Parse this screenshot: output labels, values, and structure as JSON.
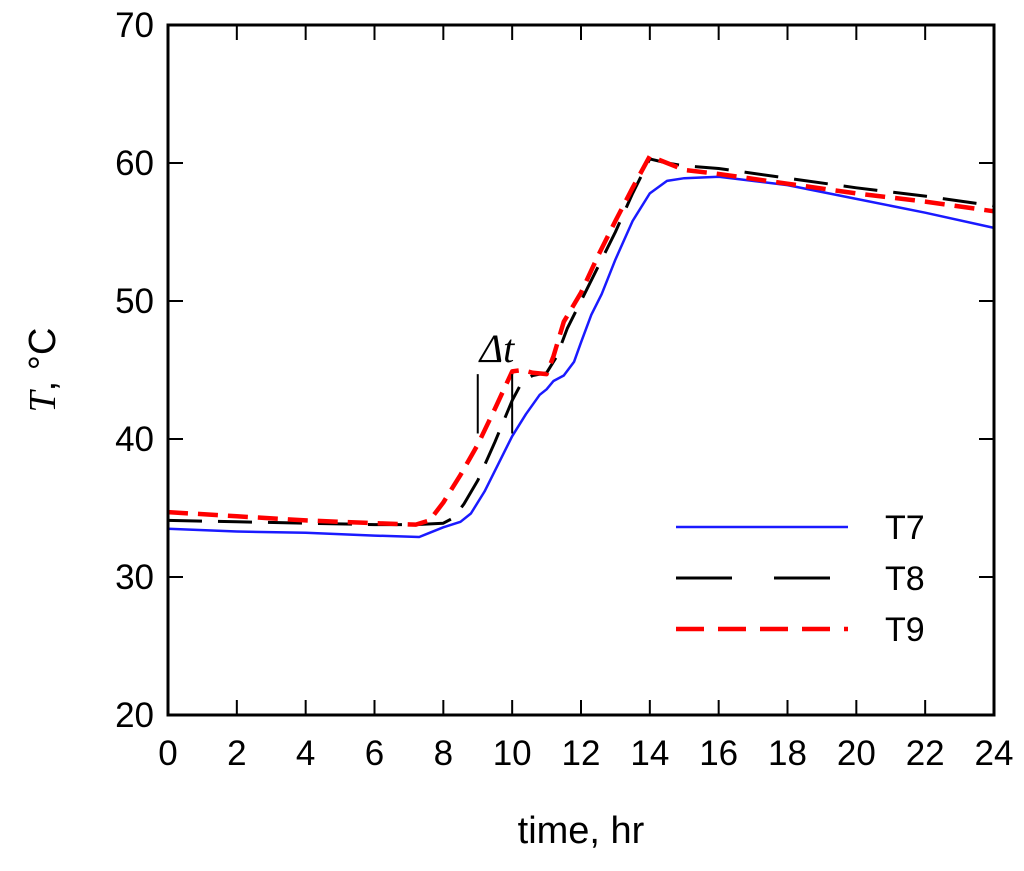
{
  "chart_data": {
    "type": "line",
    "title": "",
    "xlabel": "time, hr",
    "ylabel": {
      "symbol": "T",
      "unit": ", °C"
    },
    "xlim": [
      0,
      24
    ],
    "ylim": [
      20,
      70
    ],
    "xticks": [
      0,
      2,
      4,
      6,
      8,
      10,
      12,
      14,
      16,
      18,
      20,
      22,
      24
    ],
    "yticks": [
      20,
      30,
      40,
      50,
      60,
      70
    ],
    "grid": false,
    "legend_position": "bottom-right",
    "annotation": {
      "text": "Δt",
      "x_start": 9.0,
      "x_end": 10.0
    },
    "series": [
      {
        "name": "T7",
        "color": "#1a1aff",
        "style": "solid",
        "points": [
          [
            0,
            33.5
          ],
          [
            2,
            33.3
          ],
          [
            4,
            33.2
          ],
          [
            6,
            33.0
          ],
          [
            7.3,
            32.9
          ],
          [
            7.6,
            33.2
          ],
          [
            8,
            33.6
          ],
          [
            8.5,
            34.0
          ],
          [
            8.8,
            34.6
          ],
          [
            9.2,
            36.2
          ],
          [
            9.6,
            38.2
          ],
          [
            10.0,
            40.2
          ],
          [
            10.4,
            41.8
          ],
          [
            10.8,
            43.2
          ],
          [
            11.0,
            43.6
          ],
          [
            11.2,
            44.2
          ],
          [
            11.5,
            44.6
          ],
          [
            11.8,
            45.6
          ],
          [
            12.0,
            47.0
          ],
          [
            12.3,
            49.0
          ],
          [
            12.6,
            50.5
          ],
          [
            13.0,
            53.0
          ],
          [
            13.5,
            55.8
          ],
          [
            14.0,
            57.8
          ],
          [
            14.5,
            58.7
          ],
          [
            15.0,
            58.9
          ],
          [
            16.0,
            59.0
          ],
          [
            18.0,
            58.4
          ],
          [
            20.0,
            57.4
          ],
          [
            22.0,
            56.4
          ],
          [
            24.0,
            55.3
          ]
        ]
      },
      {
        "name": "T8",
        "color": "#000000",
        "style": "long-dash",
        "points": [
          [
            0,
            34.1
          ],
          [
            2,
            34.0
          ],
          [
            4,
            33.9
          ],
          [
            6,
            33.8
          ],
          [
            7.2,
            33.8
          ],
          [
            8.0,
            33.9
          ],
          [
            8.3,
            34.3
          ],
          [
            8.6,
            35.3
          ],
          [
            9.0,
            37.0
          ],
          [
            9.5,
            39.8
          ],
          [
            10.0,
            42.8
          ],
          [
            10.3,
            44.2
          ],
          [
            10.6,
            44.6
          ],
          [
            11.0,
            44.8
          ],
          [
            11.3,
            46.0
          ],
          [
            11.6,
            48.0
          ],
          [
            12.0,
            50.0
          ],
          [
            12.5,
            52.5
          ],
          [
            13.0,
            55.0
          ],
          [
            13.5,
            57.8
          ],
          [
            14.0,
            60.3
          ],
          [
            14.5,
            60.0
          ],
          [
            15.0,
            59.8
          ],
          [
            16.0,
            59.6
          ],
          [
            18.0,
            58.9
          ],
          [
            20.0,
            58.2
          ],
          [
            22.0,
            57.6
          ],
          [
            24.0,
            56.9
          ]
        ]
      },
      {
        "name": "T9",
        "color": "#ff0000",
        "style": "dash",
        "points": [
          [
            0,
            34.7
          ],
          [
            2,
            34.4
          ],
          [
            4,
            34.1
          ],
          [
            6,
            33.9
          ],
          [
            7.2,
            33.8
          ],
          [
            7.6,
            34.1
          ],
          [
            8.0,
            35.4
          ],
          [
            8.5,
            37.4
          ],
          [
            9.0,
            39.6
          ],
          [
            9.5,
            42.2
          ],
          [
            10.0,
            44.9
          ],
          [
            10.3,
            45.0
          ],
          [
            10.6,
            44.8
          ],
          [
            11.0,
            44.7
          ],
          [
            11.2,
            46.0
          ],
          [
            11.5,
            48.5
          ],
          [
            12.0,
            50.6
          ],
          [
            12.5,
            53.3
          ],
          [
            13.0,
            55.8
          ],
          [
            13.5,
            58.2
          ],
          [
            14.0,
            60.5
          ],
          [
            14.5,
            60.0
          ],
          [
            15.0,
            59.5
          ],
          [
            16.0,
            59.2
          ],
          [
            18.0,
            58.5
          ],
          [
            20.0,
            57.8
          ],
          [
            22.0,
            57.2
          ],
          [
            24.0,
            56.5
          ]
        ]
      }
    ]
  }
}
